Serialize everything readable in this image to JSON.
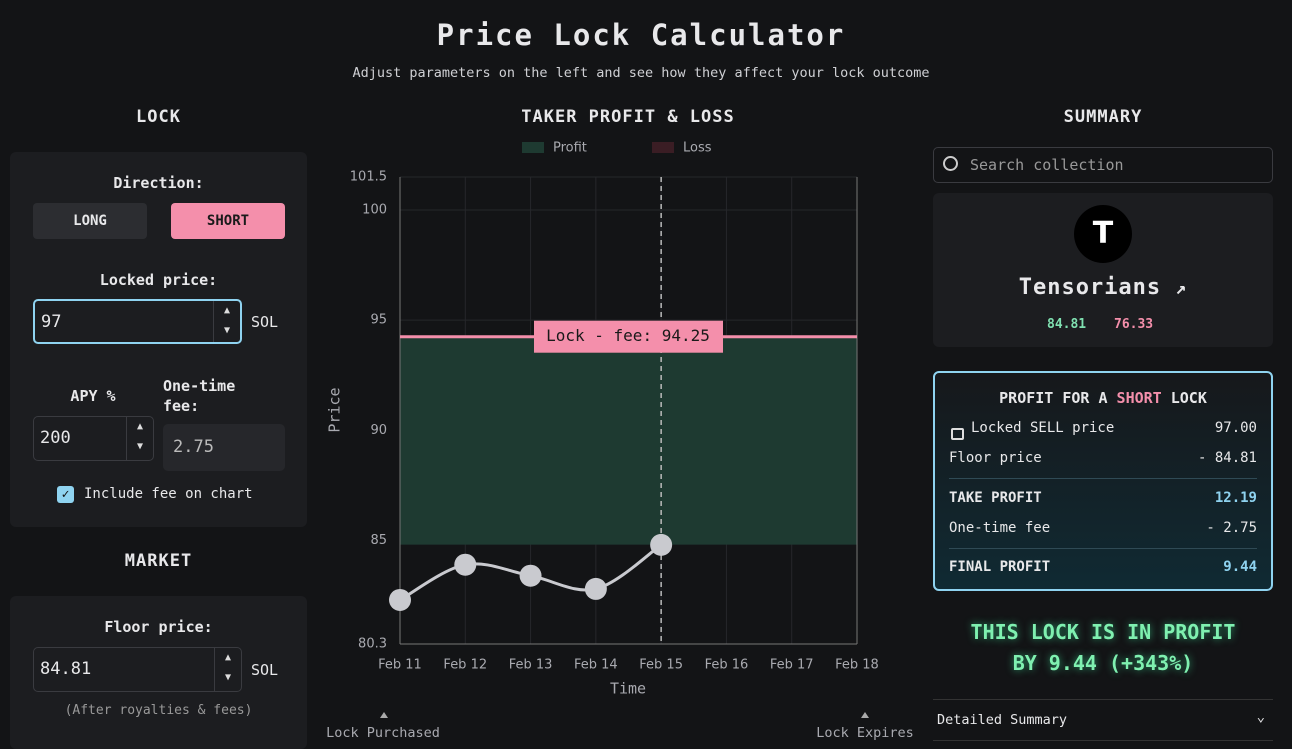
{
  "header": {
    "title": "Price Lock Calculator",
    "subtitle": "Adjust parameters on the left and see how they affect your lock outcome"
  },
  "lock": {
    "heading": "LOCK",
    "direction_label": "Direction:",
    "directions": [
      "LONG",
      "SHORT"
    ],
    "selected": 1,
    "locked_price_label": "Locked price:",
    "locked_price": 97,
    "unit": "SOL",
    "apy_label": "APY %",
    "apy": 200,
    "fee_label": "One-time fee:",
    "fee": 2.75,
    "include_fee_label": "Include fee on chart",
    "include_fee": true
  },
  "market": {
    "heading": "MARKET",
    "floor_label": "Floor price:",
    "floor_price": 84.81,
    "unit": "SOL",
    "note": "(After royalties & fees)"
  },
  "chart": {
    "type": "line",
    "title": "TAKER PROFIT & LOSS",
    "legend": [
      {
        "name": "Profit",
        "color": "#1e3a31"
      },
      {
        "name": "Loss",
        "color": "#3a1d24"
      }
    ],
    "categories": [
      "Feb 11",
      "Feb 12",
      "Feb 13",
      "Feb 14",
      "Feb 15",
      "Feb 16",
      "Feb 17",
      "Feb 18"
    ],
    "series": [
      {
        "color": "#c9cacf",
        "values": [
          82.3,
          83.9,
          83.4,
          82.8,
          84.8,
          null,
          null,
          null
        ]
      }
    ],
    "ylim": [
      80.3,
      101.5
    ],
    "yticks": [
      80.3,
      85,
      90,
      95,
      100,
      101.5
    ],
    "grid": true,
    "xlabel": "Time",
    "ylabel": "Price",
    "lock_line": 94.25,
    "floor_line": 84.81,
    "lock_line_color": "#f48fab",
    "lock_label": "Lock - fee: 94.25",
    "start_label": "Lock Purchased",
    "end_label": "Lock Expires"
  },
  "summary": {
    "heading": "SUMMARY",
    "search_placeholder": "Search collection",
    "avatar": "T",
    "collection": "Tensorians",
    "prices": [
      "84.81",
      "76.33"
    ],
    "profit_title": [
      "PROFIT FOR A",
      "SHORT",
      "LOCK"
    ],
    "rows": [
      {
        "label": "Locked SELL price",
        "value": "97.00"
      },
      {
        "label": "Floor price",
        "value": "- 84.81"
      },
      {
        "label": "TAKE PROFIT",
        "value": "12.19"
      },
      {
        "label": "One-time fee",
        "value": "- 2.75"
      },
      {
        "label": "FINAL PROFIT",
        "value": "9.44"
      }
    ],
    "verdict": [
      "THIS LOCK IS IN PROFIT",
      "BY 9.44 (+343%)"
    ],
    "details": "Detailed Summary"
  }
}
